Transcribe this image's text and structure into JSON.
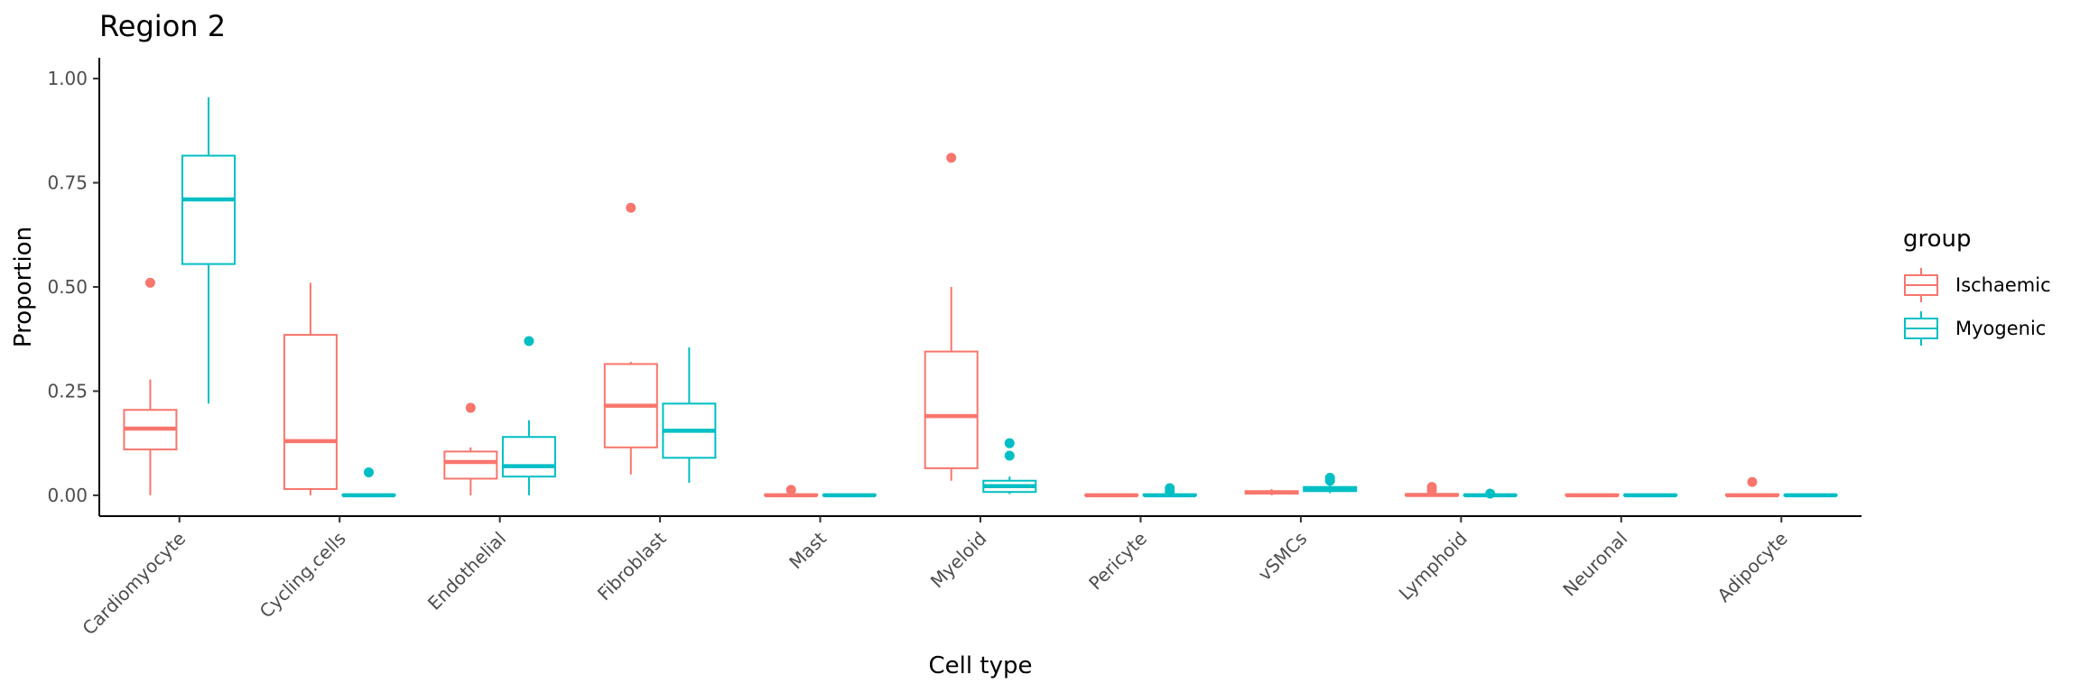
{
  "chart_data": {
    "type": "boxplot",
    "title": "Region 2",
    "xlabel": "Cell type",
    "ylabel": "Proportion",
    "ylim": [
      -0.05,
      1.05
    ],
    "yticks": [
      0.0,
      0.25,
      0.5,
      0.75,
      1.0
    ],
    "ytick_labels": [
      "0.00",
      "0.25",
      "0.50",
      "0.75",
      "1.00"
    ],
    "grid": false,
    "legend": {
      "title": "group",
      "position": "right"
    },
    "categories": [
      "Cardiomyocyte",
      "Cycling.cells",
      "Endothelial",
      "Fibroblast",
      "Mast",
      "Myeloid",
      "Pericyte",
      "vSMCs",
      "Lymphoid",
      "Neuronal",
      "Adipocyte"
    ],
    "series": [
      {
        "name": "Ischaemic",
        "color": "#F8766D",
        "boxes": [
          {
            "min": 0.0,
            "q1": 0.11,
            "median": 0.16,
            "q3": 0.205,
            "max": 0.278,
            "outliers": [
              0.51
            ]
          },
          {
            "min": 0.0,
            "q1": 0.015,
            "median": 0.13,
            "q3": 0.385,
            "max": 0.51,
            "outliers": []
          },
          {
            "min": 0.0,
            "q1": 0.04,
            "median": 0.08,
            "q3": 0.105,
            "max": 0.115,
            "outliers": [
              0.21
            ]
          },
          {
            "min": 0.05,
            "q1": 0.115,
            "median": 0.215,
            "q3": 0.315,
            "max": 0.32,
            "outliers": [
              0.69
            ]
          },
          {
            "min": 0.0,
            "q1": 0.0,
            "median": 0.0,
            "q3": 0.002,
            "max": 0.004,
            "outliers": [
              0.013
            ]
          },
          {
            "min": 0.035,
            "q1": 0.065,
            "median": 0.19,
            "q3": 0.345,
            "max": 0.5,
            "outliers": [
              0.81
            ]
          },
          {
            "min": 0.0,
            "q1": 0.0,
            "median": 0.0,
            "q3": 0.001,
            "max": 0.002,
            "outliers": []
          },
          {
            "min": 0.0,
            "q1": 0.004,
            "median": 0.007,
            "q3": 0.01,
            "max": 0.015,
            "outliers": []
          },
          {
            "min": 0.0,
            "q1": 0.0,
            "median": 0.001,
            "q3": 0.003,
            "max": 0.005,
            "outliers": [
              0.012,
              0.02
            ]
          },
          {
            "min": 0.0,
            "q1": 0.0,
            "median": 0.0,
            "q3": 0.002,
            "max": 0.003,
            "outliers": []
          },
          {
            "min": 0.0,
            "q1": 0.0,
            "median": 0.0,
            "q3": 0.002,
            "max": 0.003,
            "outliers": [
              0.032
            ]
          }
        ]
      },
      {
        "name": "Myogenic",
        "color": "#00BFC4",
        "boxes": [
          {
            "min": 0.22,
            "q1": 0.555,
            "median": 0.71,
            "q3": 0.815,
            "max": 0.955,
            "outliers": []
          },
          {
            "min": 0.0,
            "q1": 0.0,
            "median": 0.0,
            "q3": 0.001,
            "max": 0.002,
            "outliers": [
              0.055
            ]
          },
          {
            "min": 0.0,
            "q1": 0.045,
            "median": 0.07,
            "q3": 0.14,
            "max": 0.18,
            "outliers": [
              0.37
            ]
          },
          {
            "min": 0.03,
            "q1": 0.09,
            "median": 0.155,
            "q3": 0.22,
            "max": 0.355,
            "outliers": []
          },
          {
            "min": 0.0,
            "q1": 0.0,
            "median": 0.0,
            "q3": 0.001,
            "max": 0.002,
            "outliers": []
          },
          {
            "min": 0.003,
            "q1": 0.008,
            "median": 0.022,
            "q3": 0.035,
            "max": 0.045,
            "outliers": [
              0.095,
              0.125
            ]
          },
          {
            "min": 0.0,
            "q1": 0.0,
            "median": 0.0,
            "q3": 0.002,
            "max": 0.004,
            "outliers": [
              0.009,
              0.017
            ]
          },
          {
            "min": 0.005,
            "q1": 0.01,
            "median": 0.015,
            "q3": 0.02,
            "max": 0.025,
            "outliers": [
              0.035,
              0.042
            ]
          },
          {
            "min": 0.0,
            "q1": 0.0,
            "median": 0.0,
            "q3": 0.001,
            "max": 0.002,
            "outliers": [
              0.004
            ]
          },
          {
            "min": 0.0,
            "q1": 0.0,
            "median": 0.0,
            "q3": 0.001,
            "max": 0.002,
            "outliers": []
          },
          {
            "min": 0.0,
            "q1": 0.0,
            "median": 0.0,
            "q3": 0.001,
            "max": 0.002,
            "outliers": []
          }
        ]
      }
    ]
  }
}
